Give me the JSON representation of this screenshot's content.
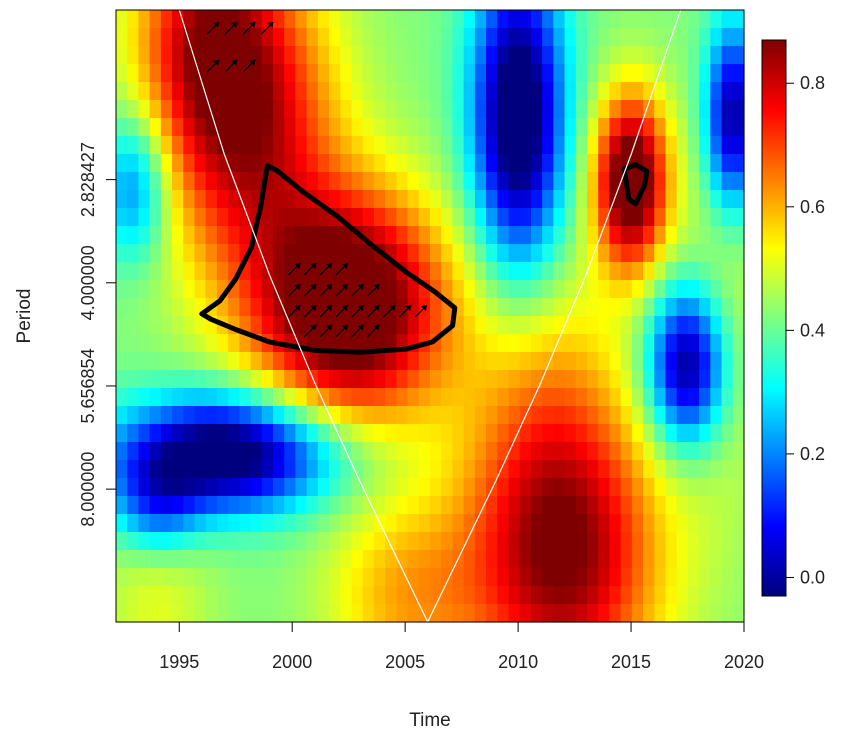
{
  "chart_data": {
    "type": "heatmap",
    "title": "",
    "xlabel": "Time",
    "ylabel": "Period",
    "xlim": [
      1992.2,
      2020
    ],
    "x_ticks": [
      {
        "value": 1995,
        "label": "1995"
      },
      {
        "value": 2000,
        "label": "2000"
      },
      {
        "value": 2005,
        "label": "2005"
      },
      {
        "value": 2010,
        "label": "2010"
      },
      {
        "value": 2015,
        "label": "2015"
      },
      {
        "value": 2020,
        "label": "2020"
      }
    ],
    "y_scale": "log2",
    "y_reversed": true,
    "ylim": [
      1.6,
      12.5
    ],
    "y_ticks": [
      {
        "value": 2.828427,
        "label": "2.828427"
      },
      {
        "value": 4.0,
        "label": "4.000000"
      },
      {
        "value": 5.656854,
        "label": "5.656854"
      },
      {
        "value": 8.0,
        "label": "8.000000"
      }
    ],
    "colorbar": {
      "min": -0.03,
      "max": 0.87,
      "ticks": [
        {
          "value": 0.0,
          "label": "0.0"
        },
        {
          "value": 0.2,
          "label": "0.2"
        },
        {
          "value": 0.4,
          "label": "0.4"
        },
        {
          "value": 0.6,
          "label": "0.6"
        },
        {
          "value": 0.8,
          "label": "0.8"
        }
      ],
      "palette": [
        "#00007F",
        "#0000FF",
        "#007FFF",
        "#00FFFF",
        "#7FFF7F",
        "#FFFF00",
        "#FF7F00",
        "#FF0000",
        "#7F0000"
      ]
    },
    "grid": false,
    "legend": "right",
    "significance_regions": [
      {
        "name": "main",
        "points": [
          [
            1996,
            4.44
          ],
          [
            1996.8,
            4.25
          ],
          [
            1997.5,
            3.95
          ],
          [
            1998.2,
            3.55
          ],
          [
            1998.6,
            3.1
          ],
          [
            1998.9,
            2.7
          ],
          [
            1999.3,
            2.74
          ],
          [
            2000.5,
            2.95
          ],
          [
            2002,
            3.2
          ],
          [
            2003.5,
            3.52
          ],
          [
            2005,
            3.85
          ],
          [
            2006.3,
            4.12
          ],
          [
            2007.2,
            4.35
          ],
          [
            2007.1,
            4.62
          ],
          [
            2006.2,
            4.88
          ],
          [
            2005,
            5.0
          ],
          [
            2003,
            5.05
          ],
          [
            2001,
            5.02
          ],
          [
            1999,
            4.88
          ],
          [
            1997.5,
            4.68
          ],
          [
            1996.4,
            4.52
          ]
        ]
      },
      {
        "name": "small",
        "points": [
          [
            2014.7,
            2.73
          ],
          [
            2015.2,
            2.69
          ],
          [
            2015.7,
            2.75
          ],
          [
            2015.6,
            2.88
          ],
          [
            2015.2,
            3.07
          ],
          [
            2014.9,
            3.02
          ]
        ]
      }
    ],
    "arrows": [
      {
        "x": 1996.5,
        "y": 1.7
      },
      {
        "x": 1997.3,
        "y": 1.7
      },
      {
        "x": 1998.1,
        "y": 1.7
      },
      {
        "x": 1998.9,
        "y": 1.7
      },
      {
        "x": 1996.5,
        "y": 1.93
      },
      {
        "x": 1997.3,
        "y": 1.93
      },
      {
        "x": 1998.1,
        "y": 1.93
      },
      {
        "x": 2000.1,
        "y": 3.82
      },
      {
        "x": 2000.8,
        "y": 3.82
      },
      {
        "x": 2001.5,
        "y": 3.82
      },
      {
        "x": 2002.2,
        "y": 3.82
      },
      {
        "x": 2000.1,
        "y": 4.1
      },
      {
        "x": 2000.8,
        "y": 4.1
      },
      {
        "x": 2001.5,
        "y": 4.1
      },
      {
        "x": 2002.2,
        "y": 4.1
      },
      {
        "x": 2002.9,
        "y": 4.1
      },
      {
        "x": 2003.6,
        "y": 4.1
      },
      {
        "x": 2000.1,
        "y": 4.4
      },
      {
        "x": 2000.8,
        "y": 4.4
      },
      {
        "x": 2001.5,
        "y": 4.4
      },
      {
        "x": 2002.2,
        "y": 4.4
      },
      {
        "x": 2002.9,
        "y": 4.4
      },
      {
        "x": 2003.6,
        "y": 4.4
      },
      {
        "x": 2004.3,
        "y": 4.4
      },
      {
        "x": 2005.0,
        "y": 4.4
      },
      {
        "x": 2005.7,
        "y": 4.4
      },
      {
        "x": 2000.8,
        "y": 4.7
      },
      {
        "x": 2001.5,
        "y": 4.7
      },
      {
        "x": 2002.2,
        "y": 4.7
      },
      {
        "x": 2002.9,
        "y": 4.7
      },
      {
        "x": 2003.6,
        "y": 4.7
      }
    ],
    "cone_of_influence": [
      {
        "x": 1995.0,
        "y": 1.6
      },
      {
        "x": 1997.0,
        "y": 2.6
      },
      {
        "x": 1999.0,
        "y": 3.9
      },
      {
        "x": 2001.0,
        "y": 5.6
      },
      {
        "x": 2003.0,
        "y": 7.8
      },
      {
        "x": 2006.0,
        "y": 12.5
      },
      {
        "x": 2009.0,
        "y": 7.8
      },
      {
        "x": 2011.0,
        "y": 5.6
      },
      {
        "x": 2013.0,
        "y": 3.9
      },
      {
        "x": 2015.0,
        "y": 2.6
      },
      {
        "x": 2017.2,
        "y": 1.6
      }
    ]
  }
}
